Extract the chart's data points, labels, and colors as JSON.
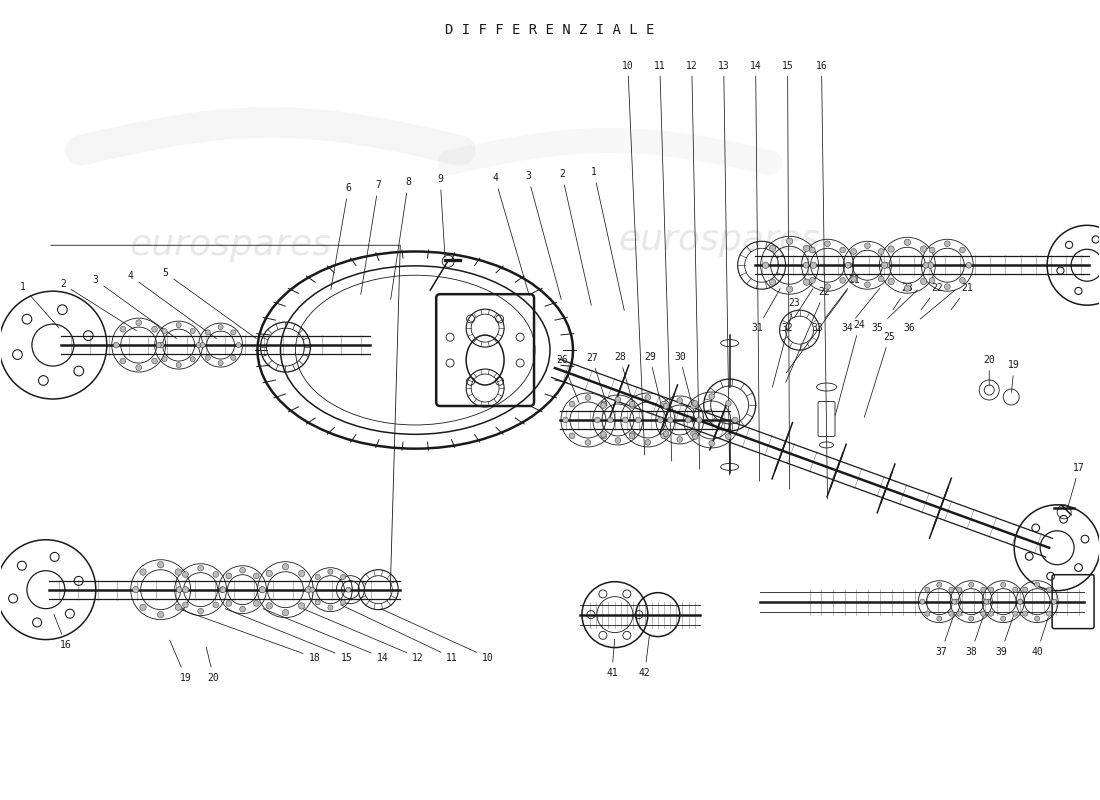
{
  "title": "D I F F E R E N Z I A L E",
  "bg_color": "#ffffff",
  "fg_color": "#1a1a1a",
  "watermark_left": "eurospares",
  "watermark_right": "eurospares",
  "fig_width": 11.0,
  "fig_height": 8.0
}
